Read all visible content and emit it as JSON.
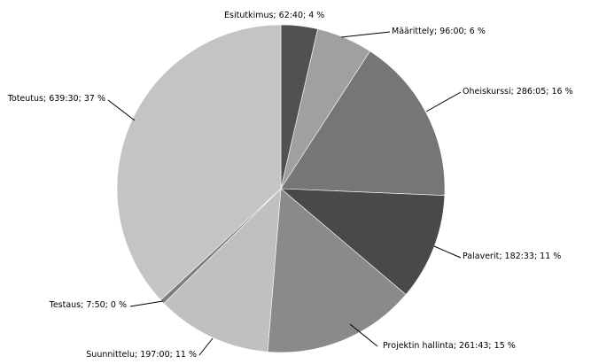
{
  "chart_data": {
    "type": "pie",
    "title": "",
    "slices": [
      {
        "name": "Esitutkimus",
        "time": "62:40",
        "percent": 4,
        "label": "Esitutkimus; 62:40; 4 %",
        "color": "#515151"
      },
      {
        "name": "Määrittely",
        "time": "96:00",
        "percent": 6,
        "label": "Määrittely; 96:00; 6 %",
        "color": "#a0a0a0"
      },
      {
        "name": "Oheiskurssi",
        "time": "286:05",
        "percent": 16,
        "label": "Oheiskurssi; 286:05; 16 %",
        "color": "#767676"
      },
      {
        "name": "Palaverit",
        "time": "182:33",
        "percent": 11,
        "label": "Palaverit; 182:33; 11 %",
        "color": "#494949"
      },
      {
        "name": "Projektin hallinta",
        "time": "261:43",
        "percent": 15,
        "label": "Projektin hallinta; 261:43; 15 %",
        "color": "#8a8a8a"
      },
      {
        "name": "Suunnittelu",
        "time": "197:00",
        "percent": 11,
        "label": "Suunnittelu; 197:00; 11 %",
        "color": "#c0c0c0"
      },
      {
        "name": "Testaus",
        "time": "7:50",
        "percent": 0,
        "label": "Testaus; 7:50; 0 %",
        "color": "#7d7d7d"
      },
      {
        "name": "Toteutus",
        "time": "639:30",
        "percent": 37,
        "label": "Toteutus; 639:30; 37 %",
        "color": "#c4c4c4"
      }
    ],
    "legend": "none",
    "label_placement": "outside with leader lines"
  }
}
